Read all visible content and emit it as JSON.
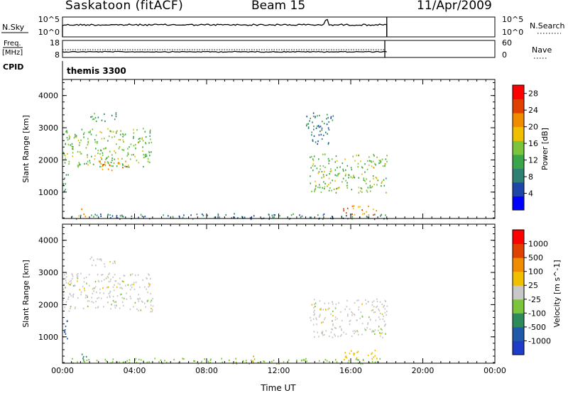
{
  "header": {
    "station": "Saskatoon (fitACF)",
    "beam": "Beam 15",
    "date": "11/Apr/2009"
  },
  "panels": {
    "nsky": {
      "left_label": "N.Sky",
      "left_ticks": [
        "10^5",
        "10^0"
      ],
      "right_ticks": [
        "10^5",
        "10^0"
      ],
      "right_label": "N.Search",
      "right_style": "dotted"
    },
    "freq": {
      "left_label_top": "Freq.",
      "left_label_bottom": "[MHz]",
      "left_ticks": [
        "18",
        "8"
      ],
      "right_ticks": [
        "60",
        "0"
      ],
      "right_label": "Nave",
      "right_style": "dotted"
    },
    "cpid": {
      "label": "CPID",
      "value": "themis 3300"
    }
  },
  "colors": {
    "power_scale": [
      "#0000ff",
      "#1e46a8",
      "#2f7f73",
      "#3aa64a",
      "#7cc43b",
      "#f0c000",
      "#f08c00",
      "#e04000",
      "#ff0000"
    ],
    "velocity_scale": [
      "#1e3cc8",
      "#1e5aa8",
      "#2f8a5a",
      "#7cc43b",
      "#c8c8c8",
      "#f0c000",
      "#f08c00",
      "#e04000",
      "#ff0000"
    ]
  },
  "chart_data": [
    {
      "type": "heatmap",
      "title": "",
      "xlabel": "",
      "ylabel": "Slant Range [km]",
      "xlim": [
        "00:00",
        "24:00"
      ],
      "ylim": [
        180,
        4500
      ],
      "x_ticks": [
        "00:00",
        "04:00",
        "08:00",
        "12:00",
        "16:00",
        "20:00",
        "00:00"
      ],
      "y_ticks": [
        1000,
        2000,
        3000,
        4000
      ],
      "colorbar": {
        "label": "Power [dB]",
        "ticks": [
          4,
          8,
          12,
          16,
          20,
          24,
          28
        ],
        "range": [
          0,
          30
        ]
      },
      "scatter_regions": [
        {
          "t": [
            0.0,
            5.0
          ],
          "range": [
            1800,
            3000
          ],
          "value": 14
        },
        {
          "t": [
            2.0,
            3.8
          ],
          "range": [
            1700,
            2000
          ],
          "value": 22
        },
        {
          "t": [
            0.0,
            0.3
          ],
          "range": [
            900,
            1600
          ],
          "value": 10
        },
        {
          "t": [
            0.8,
            1.3
          ],
          "range": [
            250,
            550
          ],
          "value": 20
        },
        {
          "t": [
            1.5,
            3.0
          ],
          "range": [
            3200,
            3500
          ],
          "value": 10
        },
        {
          "t": [
            13.7,
            18.0
          ],
          "range": [
            1000,
            2200
          ],
          "value": 14
        },
        {
          "t": [
            15.5,
            17.5
          ],
          "range": [
            300,
            600
          ],
          "value": 22
        },
        {
          "t": [
            13.5,
            15.0
          ],
          "range": [
            2500,
            3500
          ],
          "value": 8
        },
        {
          "t": [
            0.5,
            18.0
          ],
          "range": [
            180,
            350
          ],
          "value": 8
        }
      ]
    },
    {
      "type": "heatmap",
      "title": "",
      "xlabel": "Time UT",
      "ylabel": "Slant Range [km]",
      "xlim": [
        "00:00",
        "24:00"
      ],
      "ylim": [
        180,
        4500
      ],
      "x_ticks": [
        "00:00",
        "04:00",
        "08:00",
        "12:00",
        "16:00",
        "20:00",
        "00:00"
      ],
      "y_ticks": [
        1000,
        2000,
        3000,
        4000
      ],
      "colorbar": {
        "label": "Velocity [m s^-1]",
        "ticks": [
          1000,
          500,
          100,
          25,
          -25,
          -100,
          -500,
          -1000
        ]
      },
      "scatter_regions": [
        {
          "t": [
            0.0,
            5.0
          ],
          "range": [
            1800,
            3000
          ],
          "value": 0
        },
        {
          "t": [
            0.0,
            0.3
          ],
          "range": [
            900,
            1600
          ],
          "value": 800
        },
        {
          "t": [
            0.8,
            1.3
          ],
          "range": [
            250,
            550
          ],
          "value": 200
        },
        {
          "t": [
            1.5,
            3.0
          ],
          "range": [
            3200,
            3500
          ],
          "value": 0
        },
        {
          "t": [
            13.7,
            18.0
          ],
          "range": [
            1000,
            2200
          ],
          "value": 0
        },
        {
          "t": [
            15.5,
            17.5
          ],
          "range": [
            300,
            600
          ],
          "value": -50
        },
        {
          "t": [
            10.3,
            10.6
          ],
          "range": [
            250,
            450
          ],
          "value": -150
        },
        {
          "t": [
            0.5,
            18.0
          ],
          "range": [
            180,
            350
          ],
          "value": 50
        }
      ]
    }
  ]
}
